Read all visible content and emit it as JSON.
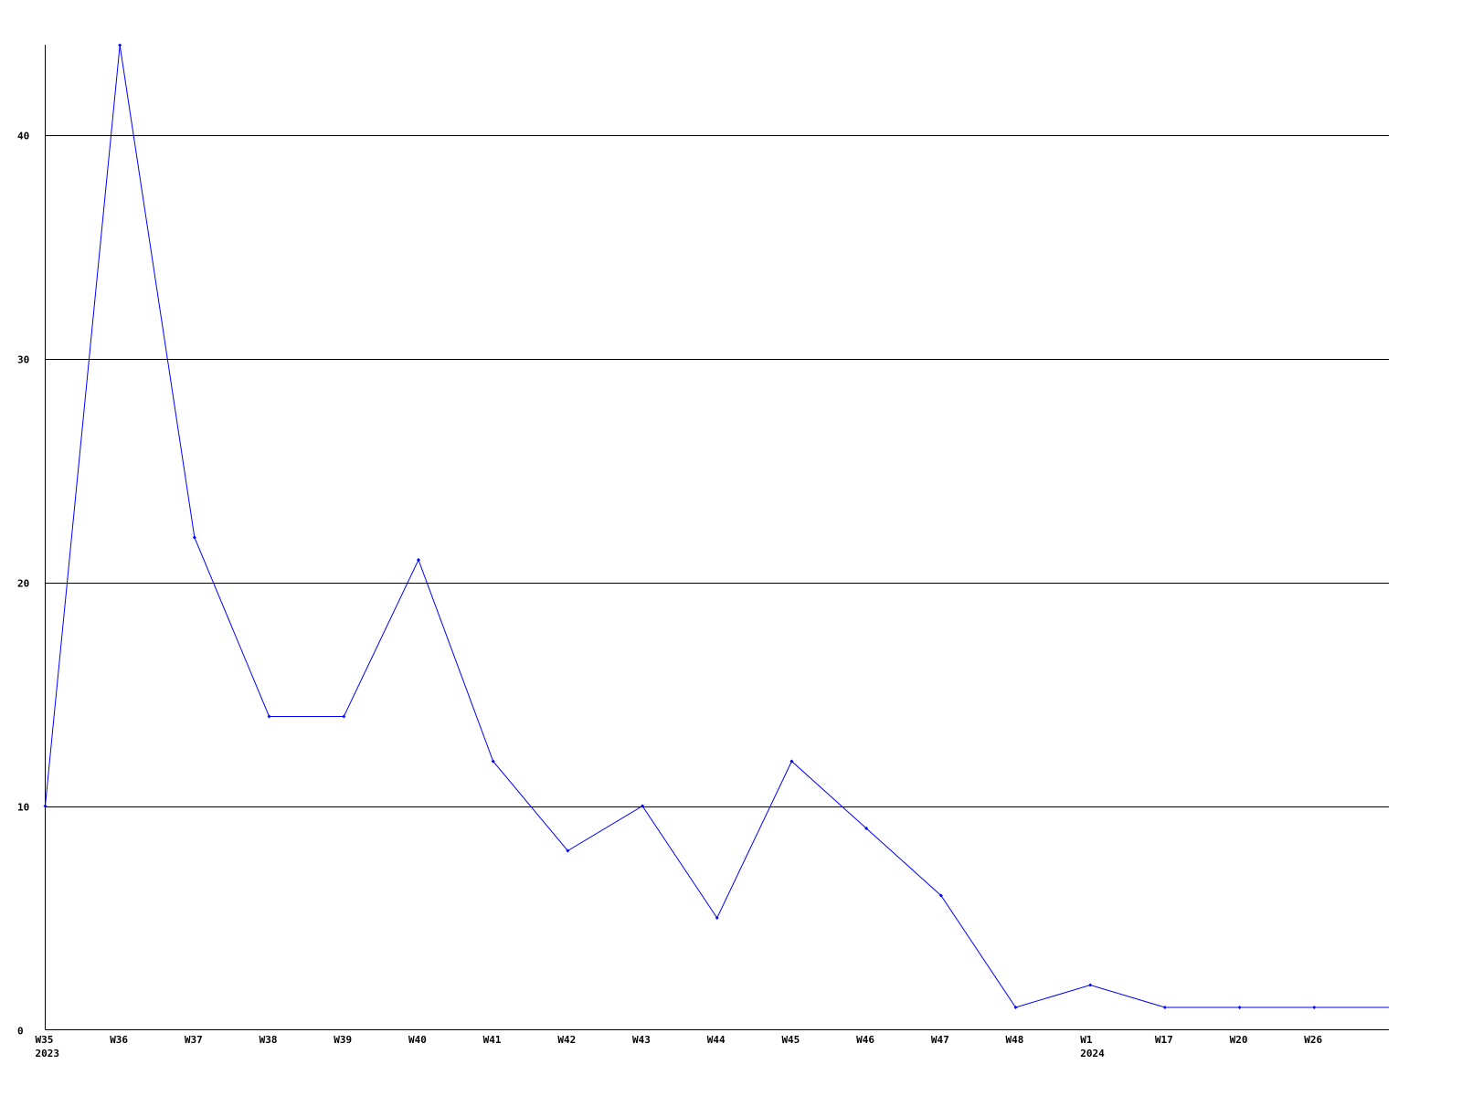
{
  "chart_data": {
    "type": "line",
    "title": "",
    "xlabel": "",
    "ylabel": "",
    "categories": [
      "W35",
      "W36",
      "W37",
      "W38",
      "W39",
      "W40",
      "W41",
      "W42",
      "W43",
      "W44",
      "W45",
      "W46",
      "W47",
      "W48",
      "W1",
      "W17",
      "W20",
      "W26"
    ],
    "year_labels": [
      {
        "category": "W35",
        "label": "2023"
      },
      {
        "category": "W1",
        "label": "2024"
      }
    ],
    "series": [
      {
        "values": [
          10,
          44,
          22,
          14,
          14,
          21,
          12,
          8,
          10,
          5,
          12,
          9,
          6,
          1,
          2,
          1,
          1,
          1
        ],
        "color": "#0000ff"
      }
    ],
    "ylim": [
      0,
      44
    ],
    "yticks": [
      0,
      10,
      20,
      30,
      40
    ],
    "grid": "horizontal",
    "line_continues_to_right_edge": true,
    "colors": {
      "line": "#0000ff",
      "grid": "#000000",
      "axis": "#000000"
    }
  }
}
